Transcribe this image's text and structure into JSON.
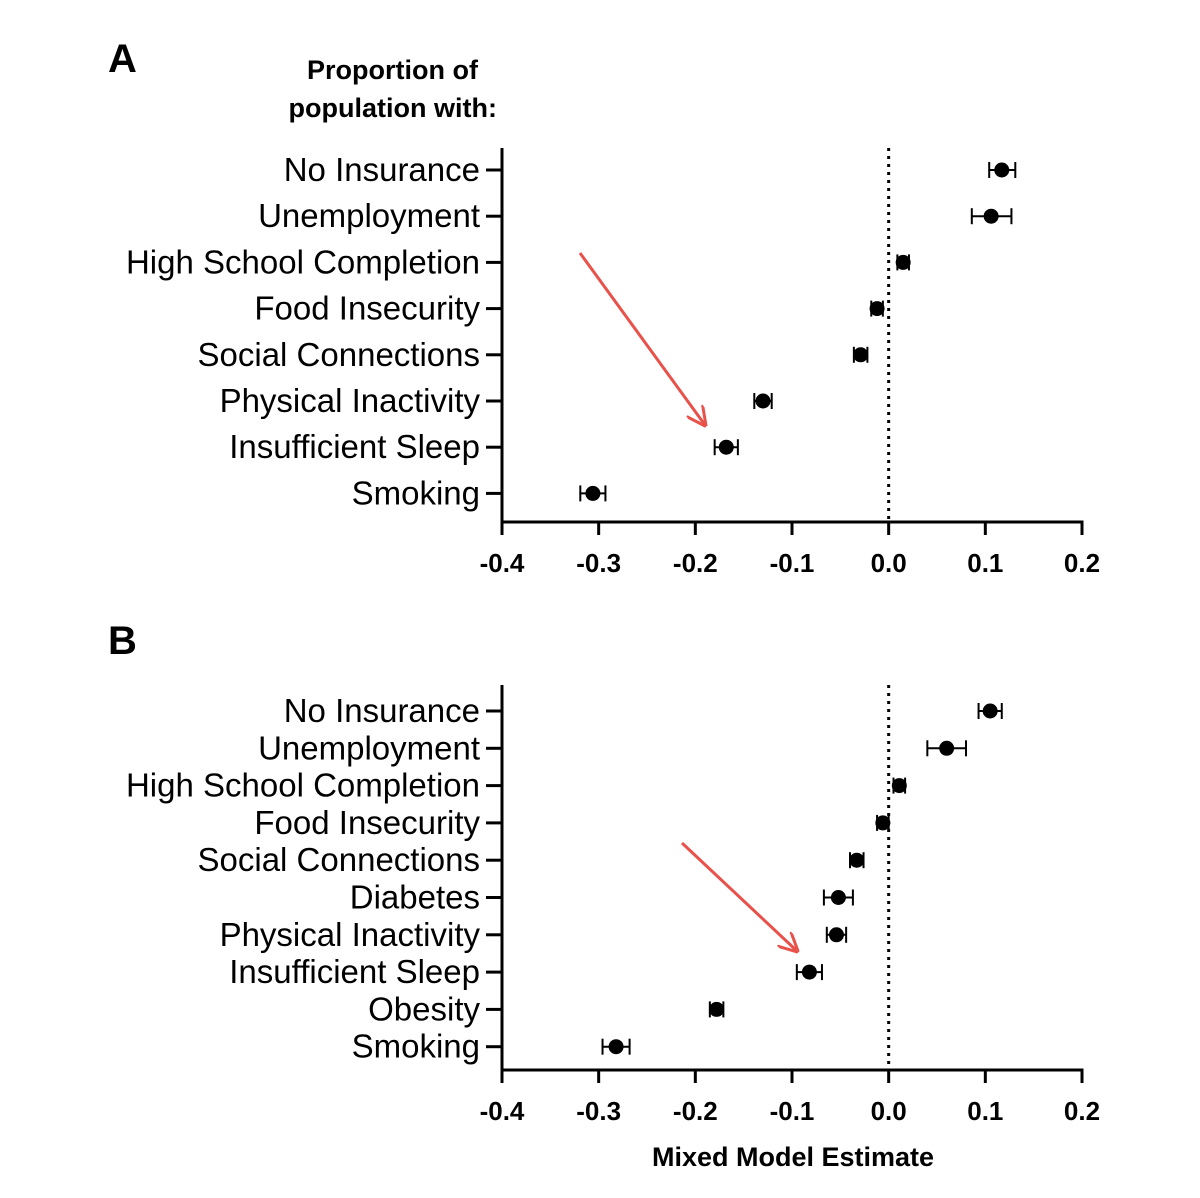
{
  "figure": {
    "header_line1": "Proportion of",
    "header_line2": "population with:",
    "xlabel": "Mixed Model Estimate",
    "arrow_color": "#e8524a"
  },
  "chart_data": [
    {
      "type": "scatter",
      "panel": "A",
      "categories": [
        "No Insurance",
        "Unemployment",
        "High School Completion",
        "Food Insecurity",
        "Social Connections",
        "Physical Inactivity",
        "Insufficient Sleep",
        "Smoking"
      ],
      "values": [
        0.117,
        0.106,
        0.015,
        -0.012,
        -0.029,
        -0.13,
        -0.168,
        -0.306
      ],
      "ci_low": [
        0.104,
        0.086,
        0.009,
        -0.018,
        -0.036,
        -0.139,
        -0.18,
        -0.319
      ],
      "ci_high": [
        0.131,
        0.127,
        0.021,
        -0.006,
        -0.022,
        -0.121,
        -0.156,
        -0.293
      ],
      "xticks": [
        "-0.4",
        "-0.3",
        "-0.2",
        "-0.1",
        "0.0",
        "0.1",
        "0.2"
      ],
      "xlim": [
        -0.4,
        0.2
      ],
      "reference_line": 0,
      "xlabel": "",
      "ylabel": "Proportion of population with:"
    },
    {
      "type": "scatter",
      "panel": "B",
      "categories": [
        "No Insurance",
        "Unemployment",
        "High School Completion",
        "Food Insecurity",
        "Social Connections",
        "Diabetes",
        "Physical Inactivity",
        "Insufficient Sleep",
        "Obesity",
        "Smoking"
      ],
      "values": [
        0.105,
        0.06,
        0.011,
        -0.006,
        -0.033,
        -0.052,
        -0.054,
        -0.082,
        -0.178,
        -0.282
      ],
      "ci_low": [
        0.093,
        0.04,
        0.005,
        -0.012,
        -0.04,
        -0.067,
        -0.064,
        -0.095,
        -0.185,
        -0.296
      ],
      "ci_high": [
        0.117,
        0.08,
        0.017,
        0.0,
        -0.026,
        -0.037,
        -0.044,
        -0.069,
        -0.171,
        -0.268
      ],
      "xticks": [
        "-0.4",
        "-0.3",
        "-0.2",
        "-0.1",
        "0.0",
        "0.1",
        "0.2"
      ],
      "xlim": [
        -0.4,
        0.2
      ],
      "reference_line": 0,
      "xlabel": "Mixed Model Estimate",
      "ylabel": ""
    }
  ]
}
